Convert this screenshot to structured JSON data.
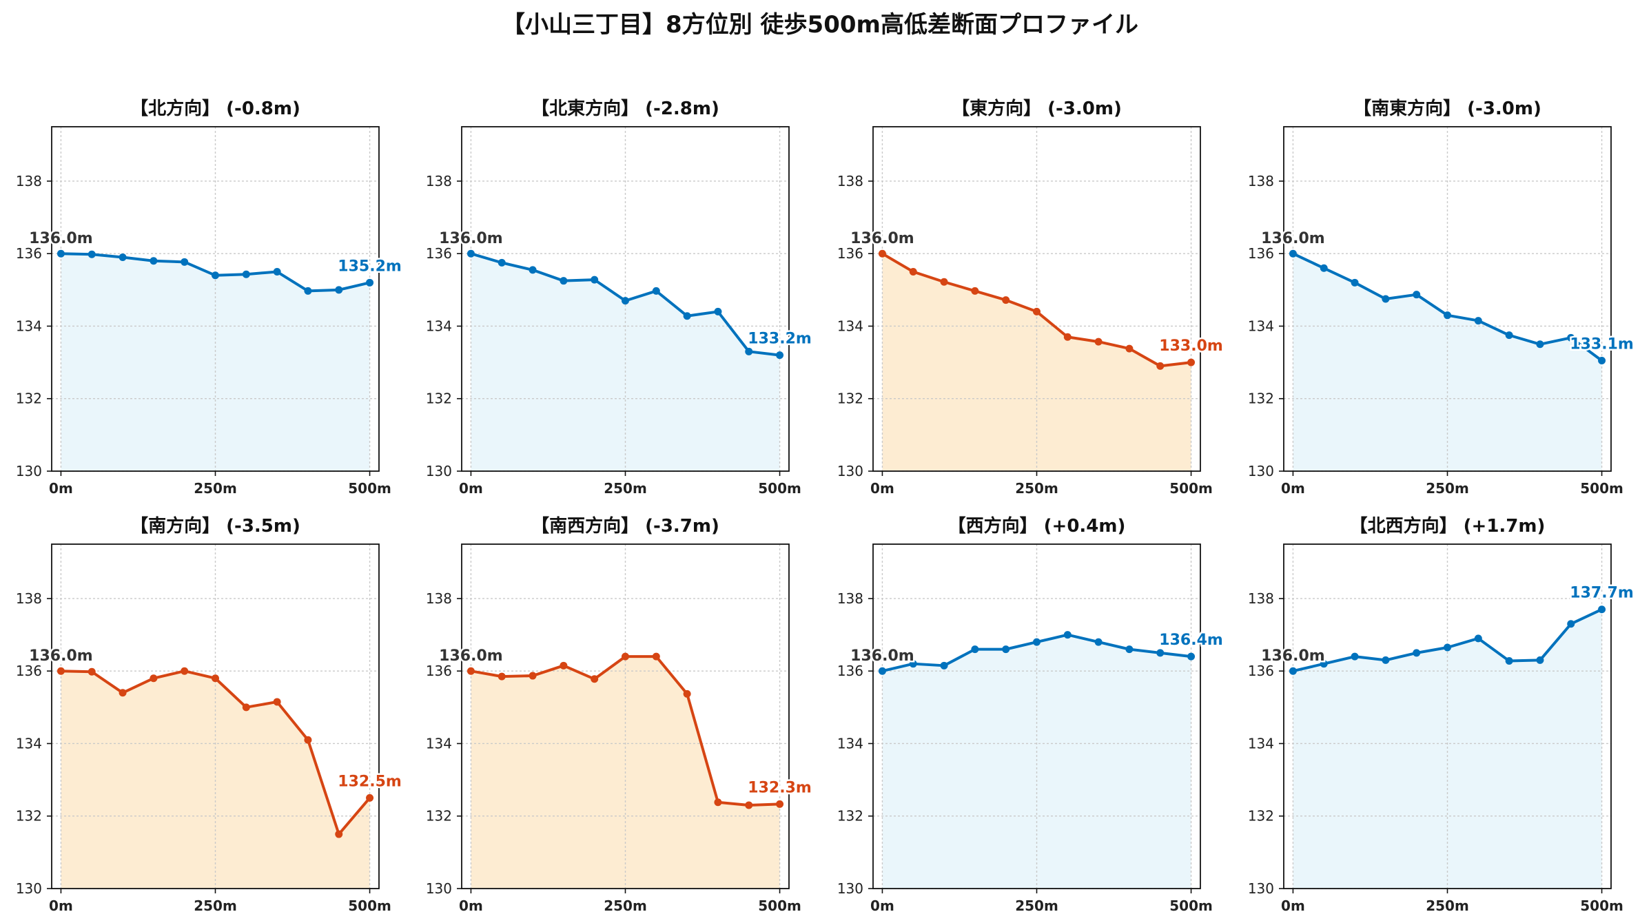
{
  "title": "【小山三丁目】8方位別 徒歩500m高低差断面プロファイル",
  "colors": {
    "up": "#0072bd",
    "down": "#d64513",
    "up_fill": "#eaf6fb",
    "down_fill": "#fdecd2"
  },
  "chart_data": [
    {
      "type": "line",
      "title": "【北方向】 (-0.8m)",
      "trend": "up",
      "x": [
        0,
        50,
        100,
        150,
        200,
        250,
        300,
        350,
        400,
        450,
        500
      ],
      "y": [
        136.0,
        135.98,
        135.9,
        135.8,
        135.77,
        135.4,
        135.43,
        135.5,
        134.97,
        135.0,
        135.2
      ],
      "xticks": [
        0,
        250,
        500
      ],
      "xtick_labels": [
        "0m",
        "250m",
        "500m"
      ],
      "yticks": [
        130,
        132,
        134,
        136,
        138
      ],
      "ylim": [
        130,
        139.5
      ],
      "xlim": [
        -15,
        515
      ],
      "start_label": "136.0m",
      "end_label": "135.2m",
      "grid": true
    },
    {
      "type": "line",
      "title": "【北東方向】 (-2.8m)",
      "trend": "up",
      "x": [
        0,
        50,
        100,
        150,
        200,
        250,
        300,
        350,
        400,
        450,
        500
      ],
      "y": [
        136.0,
        135.75,
        135.55,
        135.25,
        135.28,
        134.7,
        134.97,
        134.28,
        134.4,
        133.3,
        133.2
      ],
      "xticks": [
        0,
        250,
        500
      ],
      "xtick_labels": [
        "0m",
        "250m",
        "500m"
      ],
      "yticks": [
        130,
        132,
        134,
        136,
        138
      ],
      "ylim": [
        130,
        139.5
      ],
      "xlim": [
        -15,
        515
      ],
      "start_label": "136.0m",
      "end_label": "133.2m",
      "grid": true
    },
    {
      "type": "line",
      "title": "【東方向】 (-3.0m)",
      "trend": "down",
      "x": [
        0,
        50,
        100,
        150,
        200,
        250,
        300,
        350,
        400,
        450,
        500
      ],
      "y": [
        136.0,
        135.5,
        135.22,
        134.97,
        134.72,
        134.4,
        133.7,
        133.57,
        133.38,
        132.9,
        133.0
      ],
      "xticks": [
        0,
        250,
        500
      ],
      "xtick_labels": [
        "0m",
        "250m",
        "500m"
      ],
      "yticks": [
        130,
        132,
        134,
        136,
        138
      ],
      "ylim": [
        130,
        139.5
      ],
      "xlim": [
        -15,
        515
      ],
      "start_label": "136.0m",
      "end_label": "133.0m",
      "grid": true
    },
    {
      "type": "line",
      "title": "【南東方向】 (-3.0m)",
      "trend": "up",
      "x": [
        0,
        50,
        100,
        150,
        200,
        250,
        300,
        350,
        400,
        450,
        500
      ],
      "y": [
        136.0,
        135.6,
        135.2,
        134.75,
        134.87,
        134.3,
        134.15,
        133.75,
        133.5,
        133.68,
        133.05
      ],
      "xticks": [
        0,
        250,
        500
      ],
      "xtick_labels": [
        "0m",
        "250m",
        "500m"
      ],
      "yticks": [
        130,
        132,
        134,
        136,
        138
      ],
      "ylim": [
        130,
        139.5
      ],
      "xlim": [
        -15,
        515
      ],
      "start_label": "136.0m",
      "end_label": "133.1m",
      "grid": true
    },
    {
      "type": "line",
      "title": "【南方向】 (-3.5m)",
      "trend": "down",
      "x": [
        0,
        50,
        100,
        150,
        200,
        250,
        300,
        350,
        400,
        450,
        500
      ],
      "y": [
        136.0,
        135.98,
        135.4,
        135.8,
        136.0,
        135.8,
        135.0,
        135.15,
        134.1,
        131.5,
        132.5
      ],
      "xticks": [
        0,
        250,
        500
      ],
      "xtick_labels": [
        "0m",
        "250m",
        "500m"
      ],
      "yticks": [
        130,
        132,
        134,
        136,
        138
      ],
      "ylim": [
        130,
        139.5
      ],
      "xlim": [
        -15,
        515
      ],
      "start_label": "136.0m",
      "end_label": "132.5m",
      "grid": true
    },
    {
      "type": "line",
      "title": "【南西方向】 (-3.7m)",
      "trend": "down",
      "x": [
        0,
        50,
        100,
        150,
        200,
        250,
        300,
        350,
        400,
        450,
        500
      ],
      "y": [
        136.0,
        135.85,
        135.87,
        136.15,
        135.78,
        136.4,
        136.4,
        135.37,
        132.38,
        132.3,
        132.33
      ],
      "xticks": [
        0,
        250,
        500
      ],
      "xtick_labels": [
        "0m",
        "250m",
        "500m"
      ],
      "yticks": [
        130,
        132,
        134,
        136,
        138
      ],
      "ylim": [
        130,
        139.5
      ],
      "xlim": [
        -15,
        515
      ],
      "start_label": "136.0m",
      "end_label": "132.3m",
      "grid": true
    },
    {
      "type": "line",
      "title": "【西方向】 (+0.4m)",
      "trend": "up",
      "x": [
        0,
        50,
        100,
        150,
        200,
        250,
        300,
        350,
        400,
        450,
        500
      ],
      "y": [
        136.0,
        136.2,
        136.15,
        136.6,
        136.6,
        136.8,
        137.0,
        136.8,
        136.6,
        136.5,
        136.4
      ],
      "xticks": [
        0,
        250,
        500
      ],
      "xtick_labels": [
        "0m",
        "250m",
        "500m"
      ],
      "yticks": [
        130,
        132,
        134,
        136,
        138
      ],
      "ylim": [
        130,
        139.5
      ],
      "xlim": [
        -15,
        515
      ],
      "start_label": "136.0m",
      "end_label": "136.4m",
      "grid": true
    },
    {
      "type": "line",
      "title": "【北西方向】 (+1.7m)",
      "trend": "up",
      "x": [
        0,
        50,
        100,
        150,
        200,
        250,
        300,
        350,
        400,
        450,
        500
      ],
      "y": [
        136.0,
        136.2,
        136.4,
        136.3,
        136.5,
        136.65,
        136.9,
        136.28,
        136.3,
        137.3,
        137.7
      ],
      "xticks": [
        0,
        250,
        500
      ],
      "xtick_labels": [
        "0m",
        "250m",
        "500m"
      ],
      "yticks": [
        130,
        132,
        134,
        136,
        138
      ],
      "ylim": [
        130,
        139.5
      ],
      "xlim": [
        -15,
        515
      ],
      "start_label": "136.0m",
      "end_label": "137.7m",
      "grid": true
    }
  ]
}
